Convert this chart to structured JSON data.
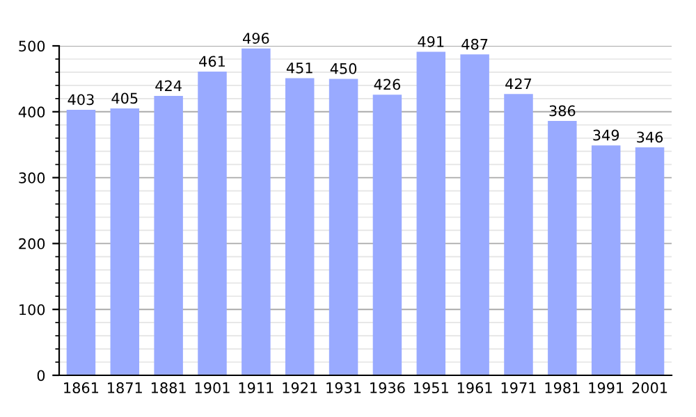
{
  "chart_data": {
    "type": "bar",
    "categories": [
      "1861",
      "1871",
      "1881",
      "1901",
      "1911",
      "1921",
      "1931",
      "1936",
      "1951",
      "1961",
      "1971",
      "1981",
      "1991",
      "2001"
    ],
    "values": [
      403,
      405,
      424,
      461,
      496,
      451,
      450,
      426,
      491,
      487,
      427,
      386,
      349,
      346
    ],
    "color": "#99aaff",
    "ylim": [
      0,
      500
    ],
    "yticks": [
      0,
      100,
      200,
      300,
      400,
      500
    ],
    "grid": "y",
    "data_labels": true
  }
}
